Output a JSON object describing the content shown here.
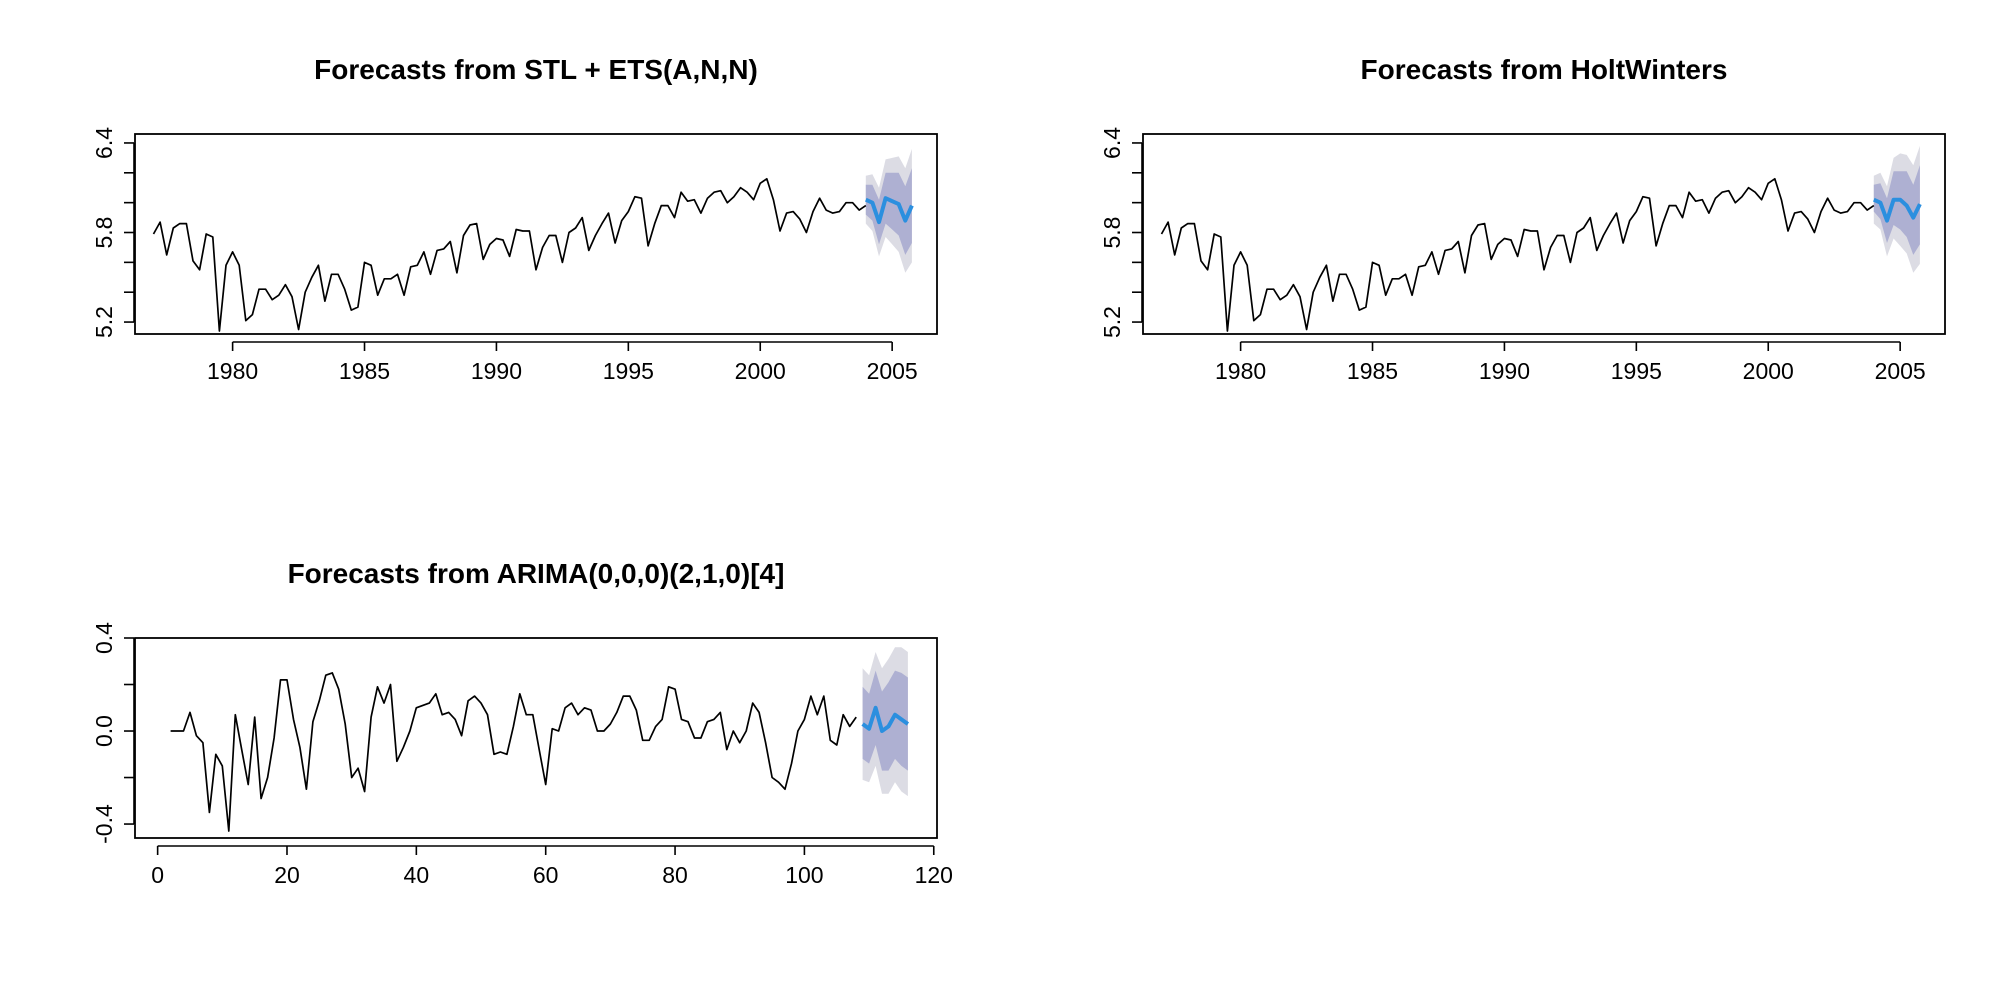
{
  "colors": {
    "observed_line": "#000000",
    "forecast_line": "#2b8fdf",
    "interval_80": "#aeb0d2",
    "interval_95": "#dcdce4",
    "background": "#ffffff"
  },
  "chart_data": [
    {
      "id": "stl",
      "type": "line",
      "title": "Forecasts from STL +  ETS(A,N,N)",
      "xlabel": "",
      "ylabel": "",
      "xlim": [
        1976.3,
        2006.7
      ],
      "ylim": [
        5.12,
        6.46
      ],
      "xticks": [
        1980,
        1985,
        1990,
        1995,
        2000,
        2005
      ],
      "xtick_labels": [
        "1980",
        "1985",
        "1990",
        "1995",
        "2000",
        "2005"
      ],
      "yticks": [
        5.2,
        5.4,
        5.6,
        5.8,
        6.0,
        6.2,
        6.4
      ],
      "ytick_labels": [
        "5.2",
        "",
        "",
        "5.8",
        "",
        "",
        "6.4"
      ],
      "grid": false,
      "observed": {
        "x_start": 1977.0,
        "x_step": 0.25,
        "values": [
          5.79,
          5.87,
          5.65,
          5.83,
          5.86,
          5.86,
          5.61,
          5.55,
          5.79,
          5.77,
          5.14,
          5.58,
          5.67,
          5.58,
          5.21,
          5.25,
          5.42,
          5.42,
          5.35,
          5.38,
          5.45,
          5.37,
          5.15,
          5.4,
          5.5,
          5.58,
          5.34,
          5.52,
          5.52,
          5.42,
          5.28,
          5.3,
          5.6,
          5.58,
          5.38,
          5.49,
          5.49,
          5.52,
          5.38,
          5.57,
          5.58,
          5.67,
          5.52,
          5.68,
          5.69,
          5.74,
          5.53,
          5.78,
          5.85,
          5.86,
          5.62,
          5.72,
          5.76,
          5.75,
          5.64,
          5.82,
          5.81,
          5.81,
          5.55,
          5.7,
          5.78,
          5.78,
          5.6,
          5.8,
          5.83,
          5.9,
          5.68,
          5.78,
          5.86,
          5.93,
          5.73,
          5.88,
          5.94,
          6.04,
          6.03,
          5.71,
          5.86,
          5.98,
          5.98,
          5.9,
          6.07,
          6.01,
          6.02,
          5.93,
          6.03,
          6.07,
          6.08,
          6.0,
          6.04,
          6.1,
          6.07,
          6.02,
          6.13,
          6.16,
          6.02,
          5.81,
          5.93,
          5.94,
          5.89,
          5.8,
          5.94,
          6.03,
          5.95,
          5.93,
          5.94,
          6.0,
          6.0,
          5.95,
          5.98
        ]
      },
      "forecast": {
        "x": [
          2004.0,
          2004.25,
          2004.5,
          2004.75,
          2005.0,
          2005.25,
          2005.5,
          2005.75
        ],
        "mean": [
          6.02,
          6.0,
          5.87,
          6.03,
          6.01,
          5.99,
          5.88,
          5.98
        ],
        "lo80": [
          5.92,
          5.88,
          5.72,
          5.86,
          5.82,
          5.78,
          5.65,
          5.73
        ],
        "hi80": [
          6.12,
          6.12,
          6.02,
          6.2,
          6.2,
          6.2,
          6.11,
          6.23
        ],
        "lo95": [
          5.86,
          5.81,
          5.64,
          5.77,
          5.72,
          5.67,
          5.53,
          5.6
        ],
        "hi95": [
          6.18,
          6.19,
          6.1,
          6.29,
          6.3,
          6.31,
          6.23,
          6.36
        ]
      }
    },
    {
      "id": "hw",
      "type": "line",
      "title": "Forecasts from HoltWinters",
      "xlabel": "",
      "ylabel": "",
      "xlim": [
        1976.3,
        2006.7
      ],
      "ylim": [
        5.12,
        6.46
      ],
      "xticks": [
        1980,
        1985,
        1990,
        1995,
        2000,
        2005
      ],
      "xtick_labels": [
        "1980",
        "1985",
        "1990",
        "1995",
        "2000",
        "2005"
      ],
      "yticks": [
        5.2,
        5.4,
        5.6,
        5.8,
        6.0,
        6.2,
        6.4
      ],
      "ytick_labels": [
        "5.2",
        "",
        "",
        "5.8",
        "",
        "",
        "6.4"
      ],
      "grid": false,
      "observed": {
        "x_start": 1977.0,
        "x_step": 0.25,
        "values": [
          5.79,
          5.87,
          5.65,
          5.83,
          5.86,
          5.86,
          5.61,
          5.55,
          5.79,
          5.77,
          5.14,
          5.58,
          5.67,
          5.58,
          5.21,
          5.25,
          5.42,
          5.42,
          5.35,
          5.38,
          5.45,
          5.37,
          5.15,
          5.4,
          5.5,
          5.58,
          5.34,
          5.52,
          5.52,
          5.42,
          5.28,
          5.3,
          5.6,
          5.58,
          5.38,
          5.49,
          5.49,
          5.52,
          5.38,
          5.57,
          5.58,
          5.67,
          5.52,
          5.68,
          5.69,
          5.74,
          5.53,
          5.78,
          5.85,
          5.86,
          5.62,
          5.72,
          5.76,
          5.75,
          5.64,
          5.82,
          5.81,
          5.81,
          5.55,
          5.7,
          5.78,
          5.78,
          5.6,
          5.8,
          5.83,
          5.9,
          5.68,
          5.78,
          5.86,
          5.93,
          5.73,
          5.88,
          5.94,
          6.04,
          6.03,
          5.71,
          5.86,
          5.98,
          5.98,
          5.9,
          6.07,
          6.01,
          6.02,
          5.93,
          6.03,
          6.07,
          6.08,
          6.0,
          6.04,
          6.1,
          6.07,
          6.02,
          6.13,
          6.16,
          6.02,
          5.81,
          5.93,
          5.94,
          5.89,
          5.8,
          5.94,
          6.03,
          5.95,
          5.93,
          5.94,
          6.0,
          6.0,
          5.95,
          5.98
        ]
      },
      "forecast": {
        "x": [
          2004.0,
          2004.25,
          2004.5,
          2004.75,
          2005.0,
          2005.25,
          2005.5,
          2005.75
        ],
        "mean": [
          6.02,
          6.0,
          5.88,
          6.02,
          6.02,
          5.98,
          5.9,
          5.99
        ],
        "lo80": [
          5.94,
          5.89,
          5.73,
          5.85,
          5.82,
          5.77,
          5.65,
          5.72
        ],
        "hi80": [
          6.12,
          6.13,
          6.03,
          6.21,
          6.21,
          6.21,
          6.12,
          6.25
        ],
        "lo95": [
          5.86,
          5.82,
          5.64,
          5.76,
          5.71,
          5.66,
          5.53,
          5.59
        ],
        "hi95": [
          6.18,
          6.2,
          6.11,
          6.3,
          6.33,
          6.32,
          6.25,
          6.38
        ]
      }
    },
    {
      "id": "arima",
      "type": "line",
      "title": "Forecasts from ARIMA(0,0,0)(2,1,0)[4]",
      "xlabel": "",
      "ylabel": "",
      "xlim": [
        -3.5,
        120.5
      ],
      "ylim": [
        -0.46,
        0.4
      ],
      "xticks": [
        0,
        20,
        40,
        60,
        80,
        100,
        120
      ],
      "xtick_labels": [
        "0",
        "20",
        "40",
        "60",
        "80",
        "100",
        "120"
      ],
      "yticks": [
        -0.4,
        -0.2,
        0.0,
        0.2,
        0.4
      ],
      "ytick_labels": [
        "-0.4",
        "",
        "0.0",
        "",
        "0.4"
      ],
      "grid": false,
      "observed": {
        "x_start": 2,
        "x_step": 1,
        "values": [
          0.0,
          0.0,
          0.0,
          0.08,
          -0.02,
          -0.05,
          -0.35,
          -0.1,
          -0.15,
          -0.43,
          0.07,
          -0.08,
          -0.23,
          0.06,
          -0.29,
          -0.2,
          -0.03,
          0.22,
          0.22,
          0.05,
          -0.07,
          -0.25,
          0.04,
          0.13,
          0.24,
          0.25,
          0.18,
          0.03,
          -0.2,
          -0.16,
          -0.26,
          0.06,
          0.19,
          0.12,
          0.2,
          -0.13,
          -0.07,
          0.0,
          0.1,
          0.11,
          0.12,
          0.16,
          0.07,
          0.08,
          0.05,
          -0.02,
          0.13,
          0.15,
          0.12,
          0.07,
          -0.1,
          -0.09,
          -0.1,
          0.02,
          0.16,
          0.07,
          0.07,
          -0.08,
          -0.23,
          0.01,
          0.0,
          0.1,
          0.12,
          0.07,
          0.1,
          0.09,
          0.0,
          0.0,
          0.03,
          0.08,
          0.15,
          0.15,
          0.09,
          -0.04,
          -0.04,
          0.02,
          0.05,
          0.19,
          0.18,
          0.05,
          0.04,
          -0.03,
          -0.03,
          0.04,
          0.05,
          0.08,
          -0.08,
          0.0,
          -0.05,
          0.0,
          0.12,
          0.08,
          -0.05,
          -0.2,
          -0.22,
          -0.25,
          -0.14,
          0.0,
          0.05,
          0.15,
          0.07,
          0.15,
          -0.04,
          -0.06,
          0.07,
          0.02,
          0.06
        ]
      },
      "forecast": {
        "x": [
          109,
          110,
          111,
          112,
          113,
          114,
          115,
          116
        ],
        "mean": [
          0.03,
          0.01,
          0.1,
          0.0,
          0.02,
          0.07,
          0.05,
          0.03
        ],
        "lo80": [
          -0.12,
          -0.14,
          -0.06,
          -0.17,
          -0.17,
          -0.12,
          -0.15,
          -0.17
        ],
        "hi80": [
          0.19,
          0.16,
          0.26,
          0.17,
          0.21,
          0.26,
          0.25,
          0.23
        ],
        "lo95": [
          -0.21,
          -0.22,
          -0.15,
          -0.27,
          -0.27,
          -0.22,
          -0.26,
          -0.28
        ],
        "hi95": [
          0.27,
          0.24,
          0.34,
          0.27,
          0.31,
          0.36,
          0.36,
          0.34
        ]
      }
    }
  ]
}
